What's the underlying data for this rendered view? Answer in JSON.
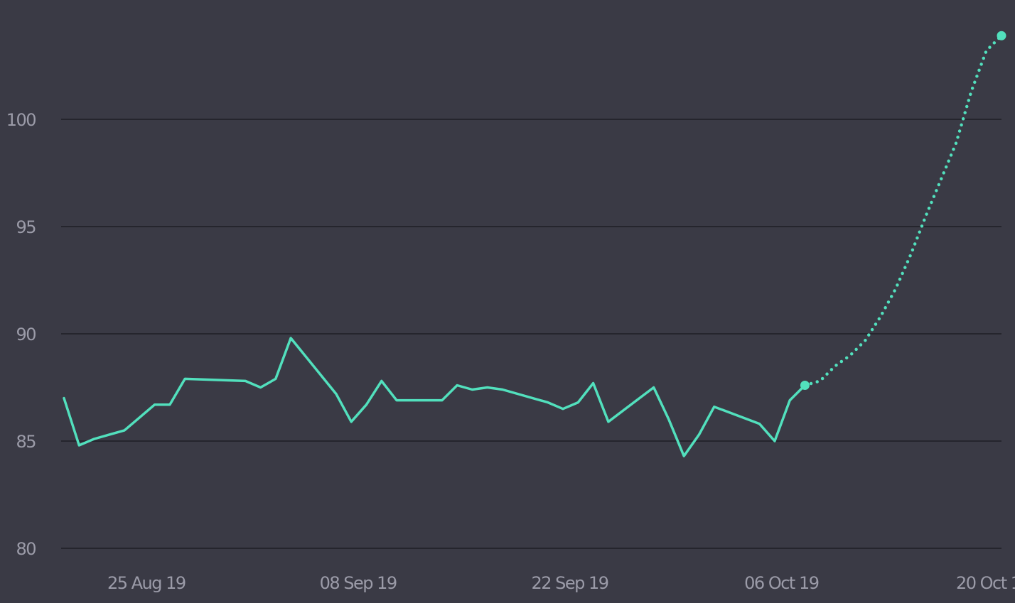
{
  "chart_data": {
    "type": "line",
    "title": "",
    "xlabel": "",
    "ylabel": "",
    "ylim": [
      80,
      104
    ],
    "grid": true,
    "y_ticks": [
      80,
      85,
      90,
      95,
      100
    ],
    "y_tick_labels": [
      "80",
      "85",
      "90",
      "95",
      "100"
    ],
    "x_ticks": [
      {
        "date": "2019-08-25",
        "label": "25 Aug 19"
      },
      {
        "date": "2019-09-08",
        "label": "08 Sep 19"
      },
      {
        "date": "2019-09-22",
        "label": "22 Sep 19"
      },
      {
        "date": "2019-10-06",
        "label": "06 Oct 19"
      },
      {
        "date": "2019-10-20",
        "label": "20 Oct 19"
      }
    ],
    "xlim": [
      "2019-08-22",
      "2019-10-23"
    ],
    "series": [
      {
        "style": "solid",
        "color": "#52e0bd",
        "points": [
          [
            "2019-08-22",
            87.0
          ],
          [
            "2019-08-23",
            84.8
          ],
          [
            "2019-08-24",
            85.1
          ],
          [
            "2019-08-25",
            85.3
          ],
          [
            "2019-08-26",
            85.5
          ],
          [
            "2019-08-27",
            86.1
          ],
          [
            "2019-08-28",
            86.7
          ],
          [
            "2019-08-29",
            86.7
          ],
          [
            "2019-08-30",
            87.9
          ],
          [
            "2019-09-03",
            87.8
          ],
          [
            "2019-09-04",
            87.5
          ],
          [
            "2019-09-05",
            87.9
          ],
          [
            "2019-09-06",
            89.8
          ],
          [
            "2019-09-09",
            87.2
          ],
          [
            "2019-09-10",
            85.9
          ],
          [
            "2019-09-11",
            86.7
          ],
          [
            "2019-09-12",
            87.8
          ],
          [
            "2019-09-13",
            86.9
          ],
          [
            "2019-09-16",
            86.9
          ],
          [
            "2019-09-17",
            87.6
          ],
          [
            "2019-09-18",
            87.4
          ],
          [
            "2019-09-19",
            87.5
          ],
          [
            "2019-09-20",
            87.4
          ],
          [
            "2019-09-23",
            86.8
          ],
          [
            "2019-09-24",
            86.5
          ],
          [
            "2019-09-25",
            86.8
          ],
          [
            "2019-09-26",
            87.7
          ],
          [
            "2019-09-27",
            85.9
          ],
          [
            "2019-09-30",
            87.5
          ],
          [
            "2019-10-01",
            86.0
          ],
          [
            "2019-10-02",
            84.3
          ],
          [
            "2019-10-03",
            85.3
          ],
          [
            "2019-10-04",
            86.6
          ],
          [
            "2019-10-07",
            85.8
          ],
          [
            "2019-10-08",
            85.0
          ],
          [
            "2019-10-09",
            86.9
          ],
          [
            "2019-10-10",
            87.6
          ]
        ]
      },
      {
        "style": "dotted",
        "color": "#52e0bd",
        "points": [
          [
            "2019-10-10",
            87.6
          ],
          [
            "2019-10-11",
            87.8
          ],
          [
            "2019-10-12",
            88.5
          ],
          [
            "2019-10-13",
            89.0
          ],
          [
            "2019-10-14",
            89.7
          ],
          [
            "2019-10-15",
            90.8
          ],
          [
            "2019-10-16",
            92.1
          ],
          [
            "2019-10-17",
            93.7
          ],
          [
            "2019-10-18",
            95.5
          ],
          [
            "2019-10-19",
            97.2
          ],
          [
            "2019-10-20",
            98.9
          ],
          [
            "2019-10-21",
            101.3
          ],
          [
            "2019-10-22",
            103.2
          ],
          [
            "2019-10-23",
            103.9
          ]
        ]
      }
    ],
    "markers": [
      {
        "date": "2019-10-10",
        "value": 87.6
      },
      {
        "date": "2019-10-23",
        "value": 103.9
      }
    ]
  }
}
